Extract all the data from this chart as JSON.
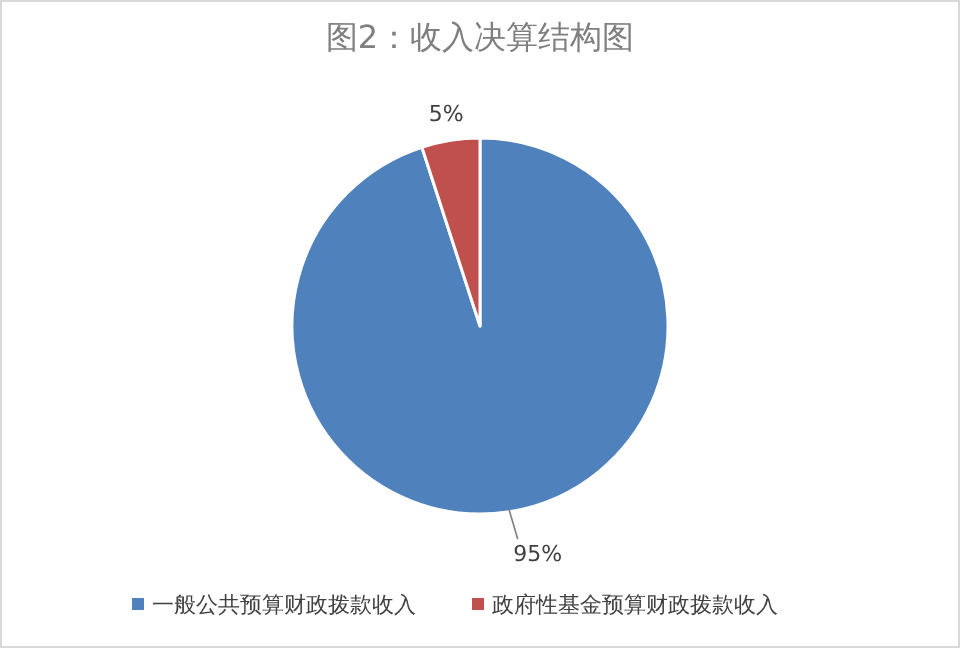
{
  "chart_data": {
    "type": "pie",
    "title": "图2：收入决算结构图",
    "categories": [
      "一般公共预算财政拨款收入",
      "政府性基金预算财政拨款收入"
    ],
    "values": [
      95,
      5
    ],
    "colors": [
      "#4f81bd",
      "#c0504d"
    ],
    "value_labels": [
      "95%",
      "5%"
    ],
    "legend": "bottom"
  }
}
